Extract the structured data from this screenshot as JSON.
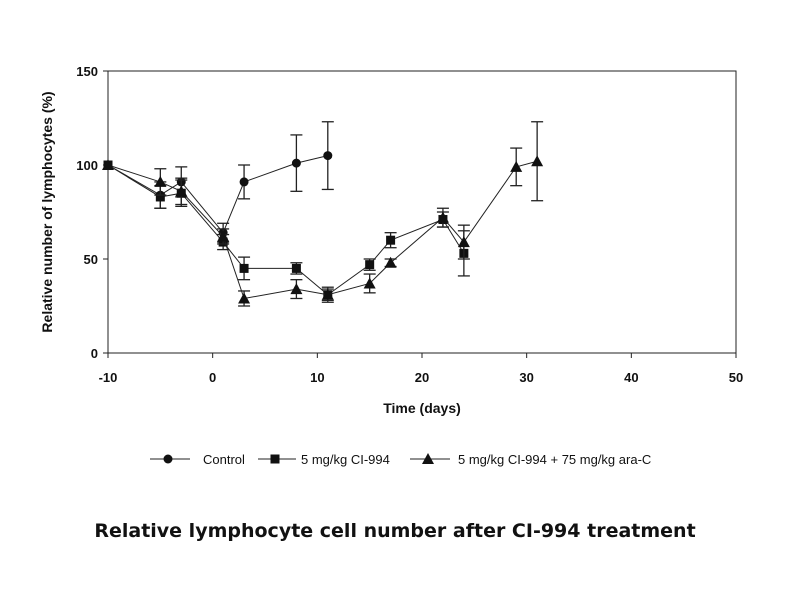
{
  "caption": "Relative lymphocyte cell number after CI-994 treatment",
  "chart_data": {
    "type": "line",
    "title": "",
    "xlabel": "Time (days)",
    "ylabel": "Relative number of lymphocytes (%)",
    "xlim": [
      -10,
      50
    ],
    "ylim": [
      0,
      150
    ],
    "xticks": [
      -10,
      0,
      10,
      20,
      30,
      40,
      50
    ],
    "yticks": [
      0,
      50,
      100,
      150
    ],
    "grid": false,
    "legend_position": "bottom",
    "series": [
      {
        "name": "Control",
        "marker": "circle",
        "points": [
          {
            "x": -10,
            "y": 100,
            "err": 0
          },
          {
            "x": -5,
            "y": 84,
            "err": 7
          },
          {
            "x": -3,
            "y": 91,
            "err": 8
          },
          {
            "x": 1,
            "y": 64,
            "err": 5
          },
          {
            "x": 3,
            "y": 91,
            "err": 9
          },
          {
            "x": 8,
            "y": 101,
            "err": 15
          },
          {
            "x": 11,
            "y": 105,
            "err": 18
          }
        ]
      },
      {
        "name": "5 mg/kg CI-994",
        "marker": "square",
        "points": [
          {
            "x": -10,
            "y": 100,
            "err": 0
          },
          {
            "x": -5,
            "y": 83,
            "err": 6
          },
          {
            "x": -3,
            "y": 85,
            "err": 7
          },
          {
            "x": 1,
            "y": 59,
            "err": 4
          },
          {
            "x": 3,
            "y": 45,
            "err": 6
          },
          {
            "x": 8,
            "y": 45,
            "err": 3
          },
          {
            "x": 11,
            "y": 31,
            "err": 3
          },
          {
            "x": 15,
            "y": 47,
            "err": 3
          },
          {
            "x": 17,
            "y": 60,
            "err": 4
          },
          {
            "x": 22,
            "y": 71,
            "err": 4
          },
          {
            "x": 24,
            "y": 53,
            "err": 12
          }
        ]
      },
      {
        "name": "5 mg/kg CI-994 + 75 mg/kg ara-C",
        "marker": "triangle",
        "points": [
          {
            "x": -10,
            "y": 100,
            "err": 0
          },
          {
            "x": -5,
            "y": 91,
            "err": 7
          },
          {
            "x": -3,
            "y": 86,
            "err": 7
          },
          {
            "x": 1,
            "y": 62,
            "err": 4
          },
          {
            "x": 3,
            "y": 29,
            "err": 4
          },
          {
            "x": 8,
            "y": 34,
            "err": 5
          },
          {
            "x": 11,
            "y": 31,
            "err": 4
          },
          {
            "x": 15,
            "y": 37,
            "err": 5
          },
          {
            "x": 17,
            "y": 48,
            "err": 2
          },
          {
            "x": 22,
            "y": 72,
            "err": 5
          },
          {
            "x": 24,
            "y": 59,
            "err": 9
          },
          {
            "x": 29,
            "y": 99,
            "err": 10
          },
          {
            "x": 31,
            "y": 102,
            "err": 21
          }
        ]
      }
    ]
  }
}
